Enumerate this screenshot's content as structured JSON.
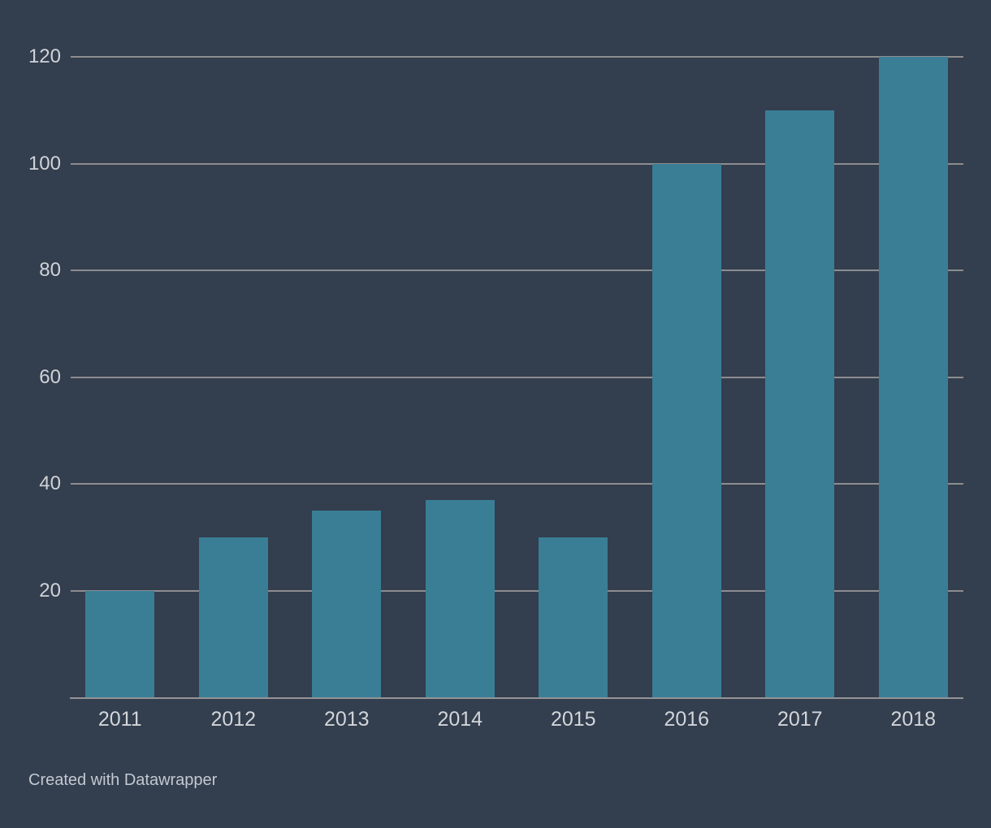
{
  "chart_data": {
    "type": "bar",
    "categories": [
      "2011",
      "2012",
      "2013",
      "2014",
      "2015",
      "2016",
      "2017",
      "2018"
    ],
    "values": [
      20,
      30,
      35,
      37,
      30,
      100,
      110,
      120
    ],
    "title": "",
    "xlabel": "",
    "ylabel": "",
    "ylim": [
      0,
      120
    ],
    "yticks": [
      20,
      40,
      60,
      80,
      100,
      120
    ],
    "grid": true,
    "legend": false,
    "bar_color": "#3a7e96",
    "background_color": "#333e4e",
    "gridline_color": "#8d8d90",
    "axis_line_color": "#949496",
    "ytick_label_color": "#d0d3d8",
    "xtick_label_color": "#d2d5d9"
  },
  "footer": {
    "attribution": "Created with Datawrapper"
  }
}
